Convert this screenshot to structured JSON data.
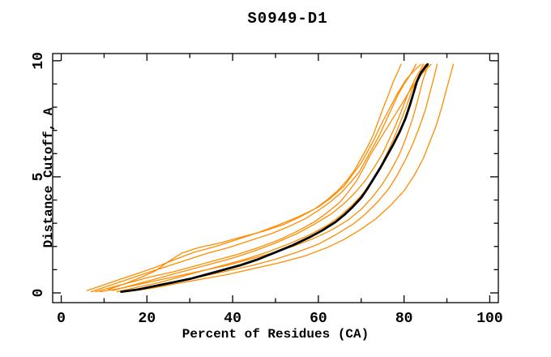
{
  "title": "S0949-D1",
  "colors": {
    "background": "#ffffff",
    "axis": "#000000",
    "model_line": "#ff8c00",
    "reference_line": "#000000",
    "text": "#000000"
  },
  "chart_data": {
    "type": "line",
    "title": "S0949-D1",
    "xlabel": "Percent of Residues (CA)",
    "ylabel": "Distance Cutoff, A",
    "xlim": [
      -2,
      102
    ],
    "ylim": [
      -0.42,
      10.31
    ],
    "grid": false,
    "legend": "none",
    "x_major_ticks": [
      0,
      20,
      40,
      60,
      80,
      100
    ],
    "x_tick_labels": [
      "0",
      "20",
      "40",
      "60",
      "80",
      "100"
    ],
    "x_minor_step": 10,
    "y_major_ticks": [
      0,
      5,
      10
    ],
    "y_tick_labels": [
      "0",
      "5",
      "10"
    ],
    "y_minor_step": 1,
    "series": [
      {
        "name": "model-1",
        "role": "model",
        "color": "#ff8c00",
        "width": 1.3,
        "points": [
          [
            6,
            0.1
          ],
          [
            10,
            0.35
          ],
          [
            14,
            0.6
          ],
          [
            18,
            0.85
          ],
          [
            22,
            1.1
          ],
          [
            26,
            1.4
          ],
          [
            31,
            1.75
          ],
          [
            36,
            2.0
          ],
          [
            41,
            2.3
          ],
          [
            46,
            2.6
          ],
          [
            51,
            2.95
          ],
          [
            55,
            3.25
          ],
          [
            59,
            3.6
          ],
          [
            62,
            4.0
          ],
          [
            64.5,
            4.4
          ],
          [
            66.5,
            4.8
          ],
          [
            68.5,
            5.3
          ],
          [
            70,
            5.8
          ],
          [
            71.5,
            6.3
          ],
          [
            72.8,
            6.8
          ],
          [
            74,
            7.4
          ],
          [
            75.2,
            8.0
          ],
          [
            76.5,
            8.6
          ],
          [
            77.5,
            9.1
          ],
          [
            78.5,
            9.5
          ],
          [
            79.3,
            9.85
          ]
        ]
      },
      {
        "name": "model-2",
        "role": "model",
        "color": "#ff8c00",
        "width": 1.3,
        "points": [
          [
            7,
            0.05
          ],
          [
            11,
            0.3
          ],
          [
            15,
            0.55
          ],
          [
            19,
            0.8
          ],
          [
            24,
            1.1
          ],
          [
            29,
            1.4
          ],
          [
            34,
            1.7
          ],
          [
            39,
            1.95
          ],
          [
            44,
            2.25
          ],
          [
            49,
            2.55
          ],
          [
            53,
            2.85
          ],
          [
            57,
            3.2
          ],
          [
            60,
            3.55
          ],
          [
            63,
            3.95
          ],
          [
            65.5,
            4.35
          ],
          [
            67.5,
            4.75
          ],
          [
            69.5,
            5.2
          ],
          [
            71,
            5.7
          ],
          [
            72.5,
            6.2
          ],
          [
            74,
            6.7
          ],
          [
            75.5,
            7.3
          ],
          [
            77,
            7.9
          ],
          [
            78.5,
            8.5
          ],
          [
            80,
            9.0
          ],
          [
            81.5,
            9.4
          ],
          [
            82.8,
            9.85
          ]
        ]
      },
      {
        "name": "model-3",
        "role": "model",
        "color": "#ff8c00",
        "width": 1.3,
        "points": [
          [
            11,
            0.15
          ],
          [
            15,
            0.4
          ],
          [
            19,
            0.7
          ],
          [
            22,
            0.95
          ],
          [
            25,
            1.35
          ],
          [
            28,
            1.7
          ],
          [
            32,
            1.95
          ],
          [
            37,
            2.15
          ],
          [
            42,
            2.4
          ],
          [
            47,
            2.65
          ],
          [
            52,
            2.95
          ],
          [
            56,
            3.3
          ],
          [
            60,
            3.7
          ],
          [
            63,
            4.1
          ],
          [
            66,
            4.6
          ],
          [
            68,
            5.1
          ],
          [
            70,
            5.6
          ],
          [
            71.5,
            6.1
          ],
          [
            73,
            6.6
          ],
          [
            74.5,
            7.2
          ],
          [
            76.5,
            7.9
          ],
          [
            78.5,
            8.6
          ],
          [
            80.5,
            9.2
          ],
          [
            82.5,
            9.6
          ],
          [
            84,
            9.85
          ]
        ]
      },
      {
        "name": "model-4",
        "role": "model",
        "color": "#ff8c00",
        "width": 1.3,
        "points": [
          [
            12,
            0.1
          ],
          [
            16,
            0.3
          ],
          [
            20,
            0.5
          ],
          [
            25,
            0.75
          ],
          [
            30,
            1.0
          ],
          [
            35,
            1.25
          ],
          [
            40,
            1.5
          ],
          [
            45,
            1.8
          ],
          [
            50,
            2.15
          ],
          [
            55,
            2.55
          ],
          [
            59,
            2.95
          ],
          [
            63,
            3.4
          ],
          [
            66,
            3.85
          ],
          [
            68.5,
            4.3
          ],
          [
            71,
            4.85
          ],
          [
            73,
            5.4
          ],
          [
            75,
            6.0
          ],
          [
            76.5,
            6.6
          ],
          [
            78,
            7.2
          ],
          [
            79.5,
            7.9
          ],
          [
            81,
            8.6
          ],
          [
            82.5,
            9.2
          ],
          [
            83.8,
            9.6
          ],
          [
            84.5,
            9.85
          ]
        ]
      },
      {
        "name": "model-5",
        "role": "model",
        "color": "#ff8c00",
        "width": 1.3,
        "points": [
          [
            13,
            0.05
          ],
          [
            18,
            0.25
          ],
          [
            23,
            0.45
          ],
          [
            28,
            0.7
          ],
          [
            33,
            0.95
          ],
          [
            38,
            1.2
          ],
          [
            43,
            1.45
          ],
          [
            48,
            1.75
          ],
          [
            53,
            2.1
          ],
          [
            58,
            2.5
          ],
          [
            62,
            2.9
          ],
          [
            65,
            3.3
          ],
          [
            68,
            3.8
          ],
          [
            70.5,
            4.3
          ],
          [
            72.5,
            4.85
          ],
          [
            74.5,
            5.45
          ],
          [
            76,
            6.0
          ],
          [
            77.5,
            6.6
          ],
          [
            79,
            7.3
          ],
          [
            80.5,
            8.0
          ],
          [
            82,
            8.8
          ],
          [
            83.5,
            9.4
          ],
          [
            85,
            9.85
          ]
        ]
      },
      {
        "name": "model-6",
        "role": "model",
        "color": "#ff8c00",
        "width": 1.3,
        "points": [
          [
            9,
            0.05
          ],
          [
            14,
            0.2
          ],
          [
            19,
            0.4
          ],
          [
            24,
            0.6
          ],
          [
            29,
            0.8
          ],
          [
            34,
            1.0
          ],
          [
            39,
            1.2
          ],
          [
            44,
            1.45
          ],
          [
            49,
            1.7
          ],
          [
            54,
            2.0
          ],
          [
            59,
            2.35
          ],
          [
            63,
            2.7
          ],
          [
            67,
            3.15
          ],
          [
            70,
            3.6
          ],
          [
            72.5,
            4.1
          ],
          [
            75,
            4.7
          ],
          [
            77,
            5.3
          ],
          [
            79,
            6.0
          ],
          [
            80.5,
            6.7
          ],
          [
            82,
            7.5
          ],
          [
            83.2,
            8.3
          ],
          [
            84.3,
            9.1
          ],
          [
            85.2,
            9.6
          ],
          [
            85.7,
            9.85
          ]
        ]
      },
      {
        "name": "model-7",
        "role": "model",
        "color": "#ff8c00",
        "width": 1.3,
        "points": [
          [
            14,
            0.05
          ],
          [
            19,
            0.2
          ],
          [
            24,
            0.35
          ],
          [
            29,
            0.55
          ],
          [
            34,
            0.75
          ],
          [
            39,
            0.95
          ],
          [
            45,
            1.2
          ],
          [
            50,
            1.45
          ],
          [
            55,
            1.75
          ],
          [
            60,
            2.1
          ],
          [
            64,
            2.5
          ],
          [
            68,
            2.95
          ],
          [
            71,
            3.4
          ],
          [
            74,
            3.95
          ],
          [
            76.5,
            4.5
          ],
          [
            78.5,
            5.1
          ],
          [
            80.5,
            5.8
          ],
          [
            82,
            6.4
          ],
          [
            83.5,
            7.1
          ],
          [
            85,
            7.9
          ],
          [
            86,
            8.6
          ],
          [
            87,
            9.3
          ],
          [
            87.7,
            9.85
          ]
        ]
      },
      {
        "name": "model-8",
        "role": "model",
        "color": "#ff8c00",
        "width": 1.3,
        "points": [
          [
            15,
            0.05
          ],
          [
            21,
            0.2
          ],
          [
            27,
            0.4
          ],
          [
            33,
            0.6
          ],
          [
            39,
            0.8
          ],
          [
            45,
            1.05
          ],
          [
            51,
            1.3
          ],
          [
            57,
            1.6
          ],
          [
            62,
            1.95
          ],
          [
            66,
            2.3
          ],
          [
            70,
            2.75
          ],
          [
            73.5,
            3.2
          ],
          [
            77,
            3.8
          ],
          [
            80,
            4.4
          ],
          [
            82.5,
            5.1
          ],
          [
            84.5,
            5.8
          ],
          [
            86,
            6.5
          ],
          [
            87.5,
            7.2
          ],
          [
            88.8,
            8.0
          ],
          [
            89.8,
            8.7
          ],
          [
            90.7,
            9.3
          ],
          [
            91.5,
            9.85
          ]
        ]
      },
      {
        "name": "model-9",
        "role": "model",
        "color": "#ff8c00",
        "width": 1.3,
        "points": [
          [
            8,
            0.05
          ],
          [
            13,
            0.3
          ],
          [
            17,
            0.5
          ],
          [
            21,
            0.7
          ],
          [
            26,
            0.9
          ],
          [
            31,
            1.15
          ],
          [
            36,
            1.4
          ],
          [
            41,
            1.65
          ],
          [
            46,
            1.95
          ],
          [
            51,
            2.3
          ],
          [
            55,
            2.65
          ],
          [
            59,
            3.05
          ],
          [
            62,
            3.45
          ],
          [
            65,
            3.9
          ],
          [
            67,
            4.35
          ],
          [
            69,
            4.85
          ],
          [
            70.5,
            5.35
          ],
          [
            72,
            5.9
          ],
          [
            74,
            6.5
          ],
          [
            76,
            7.1
          ],
          [
            78,
            7.7
          ],
          [
            80,
            8.3
          ],
          [
            82,
            8.9
          ],
          [
            84,
            9.4
          ],
          [
            86.3,
            9.85
          ]
        ]
      },
      {
        "name": "reference",
        "role": "reference",
        "color": "#000000",
        "width": 2.8,
        "points": [
          [
            14,
            0.05
          ],
          [
            18,
            0.15
          ],
          [
            22,
            0.3
          ],
          [
            26,
            0.45
          ],
          [
            30,
            0.6
          ],
          [
            34,
            0.8
          ],
          [
            38,
            1.0
          ],
          [
            42,
            1.2
          ],
          [
            46,
            1.45
          ],
          [
            50,
            1.75
          ],
          [
            54,
            2.05
          ],
          [
            58,
            2.4
          ],
          [
            61,
            2.7
          ],
          [
            64,
            3.05
          ],
          [
            66,
            3.35
          ],
          [
            68,
            3.7
          ],
          [
            70,
            4.1
          ],
          [
            71.5,
            4.5
          ],
          [
            73,
            4.95
          ],
          [
            74.5,
            5.4
          ],
          [
            76,
            5.9
          ],
          [
            77.5,
            6.4
          ],
          [
            79,
            6.95
          ],
          [
            80.3,
            7.5
          ],
          [
            81.3,
            8.05
          ],
          [
            82.2,
            8.6
          ],
          [
            83,
            9.1
          ],
          [
            84,
            9.5
          ],
          [
            85.5,
            9.85
          ]
        ]
      }
    ]
  }
}
